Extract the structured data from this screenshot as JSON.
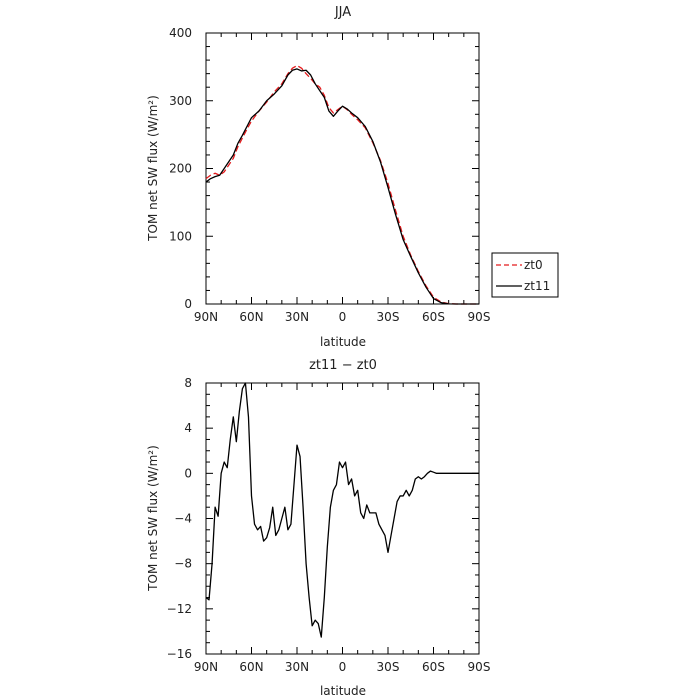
{
  "chart_data": [
    {
      "type": "line",
      "title": "JJA",
      "xlabel": "latitude",
      "ylabel": "TOM net SW flux (W/m²)",
      "xlim": [
        90,
        -90
      ],
      "ylim": [
        0,
        400
      ],
      "x_ticks": [
        "90N",
        "60N",
        "30N",
        "0",
        "30S",
        "60S",
        "90S"
      ],
      "y_ticks": [
        "0",
        "100",
        "200",
        "300",
        "400"
      ],
      "legend": "right",
      "series": [
        {
          "name": "zt0",
          "color": "#e31a1c",
          "dash": "dashed",
          "x": [
            90,
            87,
            84,
            81,
            78,
            75,
            72,
            69,
            66,
            63,
            60,
            55,
            50,
            45,
            40,
            36,
            33,
            30,
            27,
            24,
            21,
            18,
            15,
            12,
            9,
            6,
            3,
            0,
            -3,
            -6,
            -10,
            -15,
            -20,
            -25,
            -30,
            -35,
            -40,
            -45,
            -50,
            -55,
            -60,
            -65,
            -70,
            -75,
            -80,
            -85,
            -90
          ],
          "y": [
            185,
            190,
            193,
            190,
            195,
            205,
            215,
            232,
            245,
            258,
            270,
            285,
            298,
            313,
            325,
            340,
            348,
            352,
            348,
            340,
            333,
            325,
            320,
            308,
            290,
            282,
            287,
            292,
            287,
            280,
            272,
            260,
            238,
            212,
            178,
            138,
            100,
            72,
            48,
            27,
            10,
            3,
            0.5,
            0,
            0,
            0,
            0
          ]
        },
        {
          "name": "zt11",
          "color": "#000000",
          "dash": "solid",
          "x": [
            90,
            87,
            84,
            81,
            78,
            75,
            72,
            69,
            66,
            63,
            60,
            55,
            50,
            45,
            40,
            36,
            33,
            30,
            27,
            24,
            21,
            18,
            15,
            12,
            9,
            6,
            3,
            0,
            -3,
            -6,
            -10,
            -15,
            -20,
            -25,
            -30,
            -35,
            -40,
            -45,
            -50,
            -55,
            -60,
            -65,
            -70,
            -75,
            -80,
            -85,
            -90
          ],
          "y": [
            180,
            185,
            188,
            190,
            200,
            210,
            220,
            237,
            249,
            262,
            275,
            285,
            300,
            310,
            322,
            338,
            345,
            347,
            344,
            345,
            338,
            325,
            315,
            305,
            285,
            277,
            285,
            292,
            288,
            282,
            275,
            262,
            240,
            210,
            172,
            132,
            95,
            70,
            46,
            25,
            8,
            2,
            0.2,
            0,
            0,
            0,
            0
          ]
        }
      ]
    },
    {
      "type": "line",
      "title": "zt11 − zt0",
      "xlabel": "latitude",
      "ylabel": "TOM net SW flux (W/m²)",
      "xlim": [
        90,
        -90
      ],
      "ylim": [
        -16,
        8
      ],
      "x_ticks": [
        "90N",
        "60N",
        "30N",
        "0",
        "30S",
        "60S",
        "90S"
      ],
      "y_ticks": [
        "8",
        "4",
        "0",
        "−4",
        "−8",
        "−12",
        "−16"
      ],
      "series": [
        {
          "color": "#000000",
          "x": [
            90,
            88,
            86,
            84,
            82,
            80,
            78,
            76,
            74,
            72,
            70,
            68,
            66,
            64,
            62,
            60,
            58,
            56,
            54,
            52,
            50,
            48,
            46,
            44,
            42,
            40,
            38,
            36,
            34,
            32,
            30,
            28,
            26,
            24,
            22,
            20,
            18,
            16,
            14,
            12,
            10,
            8,
            6,
            4,
            2,
            0,
            -2,
            -4,
            -6,
            -8,
            -10,
            -12,
            -14,
            -16,
            -18,
            -20,
            -22,
            -24,
            -26,
            -28,
            -30,
            -32,
            -34,
            -36,
            -38,
            -40,
            -42,
            -44,
            -46,
            -48,
            -50,
            -52,
            -54,
            -56,
            -58,
            -60,
            -62,
            -64,
            -66,
            -70,
            -75,
            -80,
            -85,
            -90
          ],
          "y": [
            -11,
            -11.2,
            -8,
            -3,
            -3.8,
            0,
            1,
            0.5,
            3,
            5,
            2.8,
            5.5,
            7.5,
            8,
            5,
            -2,
            -4.5,
            -5,
            -4.7,
            -6,
            -5.7,
            -4.8,
            -3,
            -5.5,
            -5,
            -4,
            -3,
            -5,
            -4.5,
            -1,
            2.5,
            1.5,
            -3,
            -8,
            -11,
            -13.5,
            -13,
            -13.3,
            -14.5,
            -11,
            -6.5,
            -3,
            -1.5,
            -1,
            1,
            0.5,
            1,
            -1,
            -0.5,
            -2,
            -1.5,
            -3.5,
            -4,
            -2.8,
            -3.5,
            -3.5,
            -3.5,
            -4.5,
            -5,
            -5.5,
            -7,
            -5.5,
            -4,
            -2.5,
            -2,
            -2,
            -1.5,
            -2,
            -1.5,
            -0.5,
            -0.3,
            -0.5,
            -0.3,
            0,
            0.2,
            0.1,
            0,
            0,
            0,
            0,
            0,
            0,
            0,
            0
          ]
        }
      ]
    }
  ]
}
